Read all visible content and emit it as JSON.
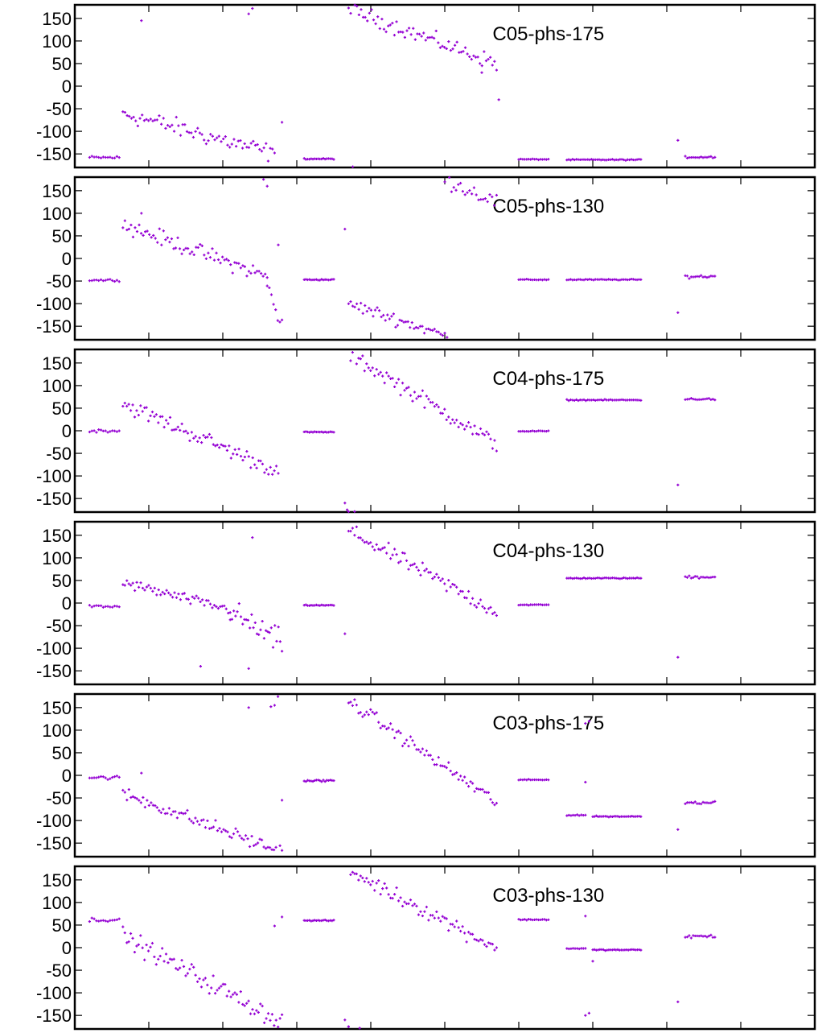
{
  "chart_data": {
    "type": "scatter",
    "point_color": "#9400D3",
    "y_axis": {
      "reversed": true,
      "range": [
        180,
        -180
      ],
      "ticks": [
        -150,
        -100,
        -50,
        0,
        50,
        100,
        150
      ]
    },
    "x_axis": {
      "range": [
        0,
        1
      ],
      "tick_labels_shown": false,
      "ticks": [
        0.1,
        0.2,
        0.3,
        0.4,
        0.5,
        0.6,
        0.7,
        0.8,
        0.9
      ]
    },
    "grid": false,
    "legend": "none",
    "panels": [
      {
        "title": "C05-phs-175",
        "segments": [
          {
            "x0": 0.02,
            "x1": 0.06,
            "y0": -158,
            "y1": -158,
            "noise": 3,
            "n": 14
          },
          {
            "x0": 0.065,
            "x1": 0.27,
            "y0": -60,
            "y1": -150,
            "noise": 18,
            "n": 72
          },
          {
            "x0": 0.31,
            "x1": 0.35,
            "y0": -161,
            "y1": -161,
            "noise": 1,
            "n": 18
          },
          {
            "x0": 0.37,
            "x1": 0.57,
            "y0": 170,
            "y1": 50,
            "noise": 15,
            "n": 72
          },
          {
            "x0": 0.6,
            "x1": 0.64,
            "y0": -162,
            "y1": -162,
            "noise": 1,
            "n": 16
          },
          {
            "x0": 0.665,
            "x1": 0.765,
            "y0": -163,
            "y1": -163,
            "noise": 1,
            "n": 40
          },
          {
            "x0": 0.825,
            "x1": 0.865,
            "y0": -157,
            "y1": -157,
            "noise": 2,
            "n": 16
          }
        ],
        "outliers": [
          [
            0.09,
            145
          ],
          [
            0.235,
            160
          ],
          [
            0.24,
            172
          ],
          [
            0.28,
            -80
          ],
          [
            0.55,
            30
          ],
          [
            0.573,
            -30
          ],
          [
            0.815,
            -120
          ]
        ]
      },
      {
        "title": "C05-phs-130",
        "segments": [
          {
            "x0": 0.02,
            "x1": 0.06,
            "y0": -48,
            "y1": -48,
            "noise": 2,
            "n": 14
          },
          {
            "x0": 0.065,
            "x1": 0.26,
            "y0": 75,
            "y1": -40,
            "noise": 15,
            "n": 72
          },
          {
            "x0": 0.26,
            "x1": 0.28,
            "y0": -60,
            "y1": -150,
            "noise": 15,
            "n": 8
          },
          {
            "x0": 0.31,
            "x1": 0.35,
            "y0": -47,
            "y1": -47,
            "noise": 1,
            "n": 18
          },
          {
            "x0": 0.37,
            "x1": 0.5,
            "y0": -100,
            "y1": -170,
            "noise": 12,
            "n": 48
          },
          {
            "x0": 0.5,
            "x1": 0.57,
            "y0": 175,
            "y1": 125,
            "noise": 15,
            "n": 24
          },
          {
            "x0": 0.6,
            "x1": 0.64,
            "y0": -47,
            "y1": -47,
            "noise": 1,
            "n": 16
          },
          {
            "x0": 0.665,
            "x1": 0.765,
            "y0": -47,
            "y1": -47,
            "noise": 1,
            "n": 40
          },
          {
            "x0": 0.825,
            "x1": 0.865,
            "y0": -40,
            "y1": -40,
            "noise": 3,
            "n": 16
          }
        ],
        "outliers": [
          [
            0.09,
            100
          ],
          [
            0.365,
            65
          ],
          [
            0.255,
            175
          ],
          [
            0.26,
            160
          ],
          [
            0.275,
            30
          ],
          [
            0.815,
            -120
          ]
        ]
      },
      {
        "title": "C04-phs-175",
        "segments": [
          {
            "x0": 0.02,
            "x1": 0.06,
            "y0": 0,
            "y1": 0,
            "noise": 3,
            "n": 14
          },
          {
            "x0": 0.065,
            "x1": 0.275,
            "y0": 60,
            "y1": -90,
            "noise": 15,
            "n": 80
          },
          {
            "x0": 0.31,
            "x1": 0.35,
            "y0": -3,
            "y1": -3,
            "noise": 1,
            "n": 18
          },
          {
            "x0": 0.37,
            "x1": 0.57,
            "y0": 170,
            "y1": -30,
            "noise": 15,
            "n": 75
          },
          {
            "x0": 0.6,
            "x1": 0.64,
            "y0": -1,
            "y1": -1,
            "noise": 1,
            "n": 16
          },
          {
            "x0": 0.665,
            "x1": 0.765,
            "y0": 68,
            "y1": 68,
            "noise": 1,
            "n": 40
          },
          {
            "x0": 0.825,
            "x1": 0.865,
            "y0": 70,
            "y1": 70,
            "noise": 2,
            "n": 16
          }
        ],
        "outliers": [
          [
            0.365,
            -160
          ],
          [
            0.368,
            -175
          ],
          [
            0.815,
            -120
          ]
        ]
      },
      {
        "title": "C04-phs-130",
        "segments": [
          {
            "x0": 0.02,
            "x1": 0.06,
            "y0": -8,
            "y1": -8,
            "noise": 3,
            "n": 14
          },
          {
            "x0": 0.065,
            "x1": 0.21,
            "y0": 45,
            "y1": -15,
            "noise": 10,
            "n": 55
          },
          {
            "x0": 0.21,
            "x1": 0.28,
            "y0": -20,
            "y1": -90,
            "noise": 25,
            "n": 30
          },
          {
            "x0": 0.31,
            "x1": 0.35,
            "y0": -5,
            "y1": -5,
            "noise": 1,
            "n": 18
          },
          {
            "x0": 0.37,
            "x1": 0.57,
            "y0": 160,
            "y1": -20,
            "noise": 15,
            "n": 75
          },
          {
            "x0": 0.6,
            "x1": 0.64,
            "y0": -4,
            "y1": -4,
            "noise": 1,
            "n": 16
          },
          {
            "x0": 0.665,
            "x1": 0.765,
            "y0": 55,
            "y1": 55,
            "noise": 1,
            "n": 40
          },
          {
            "x0": 0.825,
            "x1": 0.865,
            "y0": 58,
            "y1": 58,
            "noise": 3,
            "n": 16
          }
        ],
        "outliers": [
          [
            0.17,
            -140
          ],
          [
            0.235,
            -145
          ],
          [
            0.24,
            145
          ],
          [
            0.365,
            -68
          ],
          [
            0.815,
            -120
          ]
        ]
      },
      {
        "title": "C03-phs-175",
        "segments": [
          {
            "x0": 0.02,
            "x1": 0.06,
            "y0": -5,
            "y1": -5,
            "noise": 4,
            "n": 14
          },
          {
            "x0": 0.065,
            "x1": 0.28,
            "y0": -40,
            "y1": -170,
            "noise": 13,
            "n": 80
          },
          {
            "x0": 0.31,
            "x1": 0.35,
            "y0": -12,
            "y1": -12,
            "noise": 2,
            "n": 18
          },
          {
            "x0": 0.37,
            "x1": 0.57,
            "y0": 165,
            "y1": -60,
            "noise": 13,
            "n": 75
          },
          {
            "x0": 0.6,
            "x1": 0.64,
            "y0": -10,
            "y1": -10,
            "noise": 1,
            "n": 16
          },
          {
            "x0": 0.665,
            "x1": 0.69,
            "y0": -88,
            "y1": -88,
            "noise": 1,
            "n": 10
          },
          {
            "x0": 0.7,
            "x1": 0.765,
            "y0": -91,
            "y1": -91,
            "noise": 1,
            "n": 28
          },
          {
            "x0": 0.825,
            "x1": 0.865,
            "y0": -60,
            "y1": -60,
            "noise": 3,
            "n": 16
          }
        ],
        "outliers": [
          [
            0.09,
            5
          ],
          [
            0.235,
            150
          ],
          [
            0.265,
            152
          ],
          [
            0.27,
            155
          ],
          [
            0.28,
            -55
          ],
          [
            0.69,
            -15
          ],
          [
            0.69,
            115
          ],
          [
            0.695,
            120
          ],
          [
            0.815,
            -120
          ]
        ]
      },
      {
        "title": "C03-phs-130",
        "segments": [
          {
            "x0": 0.02,
            "x1": 0.06,
            "y0": 62,
            "y1": 62,
            "noise": 4,
            "n": 14
          },
          {
            "x0": 0.065,
            "x1": 0.28,
            "y0": 25,
            "y1": -165,
            "noise": 18,
            "n": 82
          },
          {
            "x0": 0.31,
            "x1": 0.35,
            "y0": 60,
            "y1": 60,
            "noise": 1,
            "n": 18
          },
          {
            "x0": 0.37,
            "x1": 0.57,
            "y0": 170,
            "y1": 0,
            "noise": 15,
            "n": 75
          },
          {
            "x0": 0.6,
            "x1": 0.64,
            "y0": 62,
            "y1": 62,
            "noise": 1,
            "n": 16
          },
          {
            "x0": 0.665,
            "x1": 0.69,
            "y0": -2,
            "y1": -2,
            "noise": 1,
            "n": 10
          },
          {
            "x0": 0.7,
            "x1": 0.765,
            "y0": -5,
            "y1": -5,
            "noise": 1,
            "n": 28
          },
          {
            "x0": 0.825,
            "x1": 0.865,
            "y0": 25,
            "y1": 25,
            "noise": 3,
            "n": 16
          }
        ],
        "outliers": [
          [
            0.365,
            -160
          ],
          [
            0.37,
            -175
          ],
          [
            0.385,
            -178
          ],
          [
            0.27,
            48
          ],
          [
            0.28,
            68
          ],
          [
            0.69,
            -150
          ],
          [
            0.695,
            -145
          ],
          [
            0.69,
            70
          ],
          [
            0.7,
            -30
          ],
          [
            0.815,
            -120
          ]
        ]
      }
    ]
  }
}
